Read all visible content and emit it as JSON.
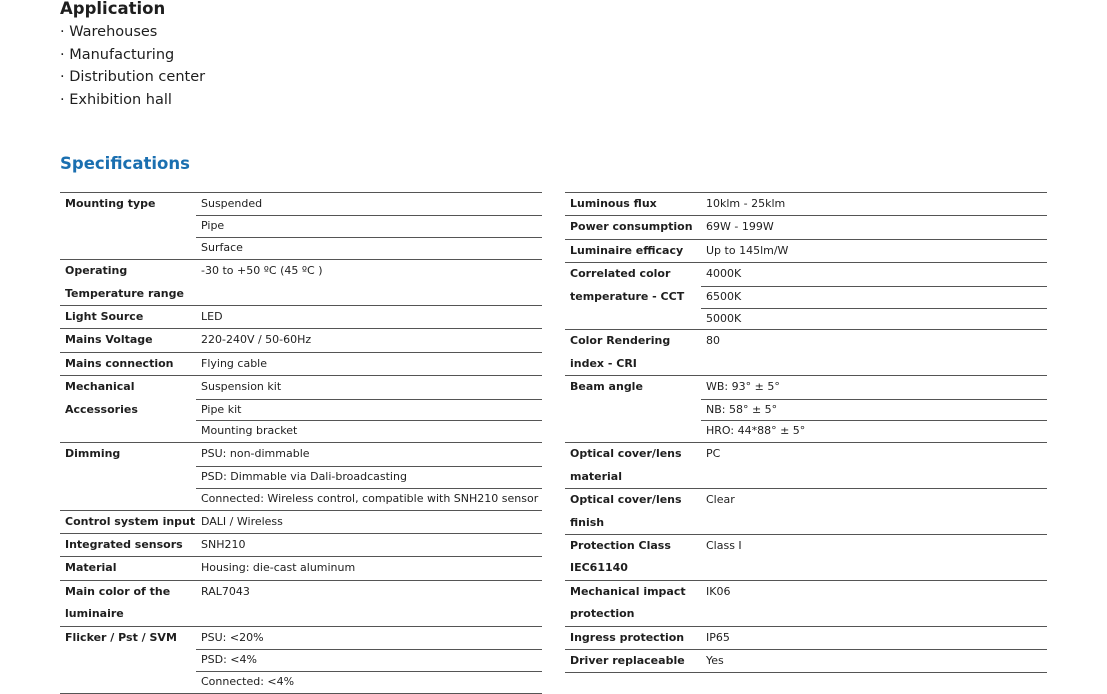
{
  "application": {
    "title": "Application",
    "items": [
      "Warehouses",
      "Manufacturing",
      "Distribution center",
      "Exhibition hall"
    ]
  },
  "specifications": {
    "title": "Specifications",
    "left": [
      {
        "label": "Mounting type",
        "values": [
          "Suspended",
          "Pipe",
          "Surface"
        ]
      },
      {
        "label": "Operating Temperature range",
        "values": [
          "-30 to +50 ºC (45 ºC )"
        ]
      },
      {
        "label": "Light Source",
        "values": [
          "LED"
        ]
      },
      {
        "label": "Mains Voltage",
        "values": [
          "220-240V / 50-60Hz"
        ]
      },
      {
        "label": "Mains connection",
        "values": [
          "Flying cable"
        ]
      },
      {
        "label": "Mechanical Accessories",
        "values": [
          "Suspension kit",
          "Pipe kit",
          "Mounting bracket"
        ]
      },
      {
        "label": "Dimming",
        "values": [
          "PSU: non-dimmable",
          "PSD: Dimmable via Dali-broadcasting",
          "Connected: Wireless control, compatible with SNH210 sensor"
        ]
      },
      {
        "label": "Control system input",
        "values": [
          "DALI / Wireless"
        ]
      },
      {
        "label": "Integrated sensors",
        "values": [
          "SNH210"
        ]
      },
      {
        "label": "Material",
        "values": [
          "Housing: die-cast aluminum"
        ]
      },
      {
        "label": "Main color of the luminaire",
        "values": [
          "RAL7043"
        ]
      },
      {
        "label": "Flicker / Pst / SVM",
        "values": [
          "PSU: <20%",
          "PSD: <4%",
          "Connected: <4%"
        ]
      }
    ],
    "right": [
      {
        "label": "Luminous flux",
        "values": [
          "10klm - 25klm"
        ]
      },
      {
        "label": "Power consumption",
        "values": [
          "69W - 199W"
        ]
      },
      {
        "label": "Luminaire efficacy",
        "values": [
          "Up to 145lm/W"
        ]
      },
      {
        "label": "Correlated color temperature - CCT",
        "values": [
          "4000K",
          "6500K",
          "5000K"
        ]
      },
      {
        "label": "Color Rendering index - CRI",
        "values": [
          "80"
        ]
      },
      {
        "label": "Beam angle",
        "values": [
          "WB: 93° ± 5°",
          "NB: 58° ± 5°",
          "HRO: 44*88° ± 5°"
        ]
      },
      {
        "label": "Optical cover/lens material",
        "values": [
          "PC"
        ]
      },
      {
        "label": "Optical cover/lens finish",
        "values": [
          "Clear"
        ]
      },
      {
        "label": "Protection Class IEC61140",
        "values": [
          "Class I"
        ]
      },
      {
        "label": "Mechanical impact protection",
        "values": [
          "IK06"
        ]
      },
      {
        "label": "Ingress protection",
        "values": [
          "IP65"
        ]
      },
      {
        "label": "Driver replaceable",
        "values": [
          "Yes"
        ]
      }
    ]
  }
}
